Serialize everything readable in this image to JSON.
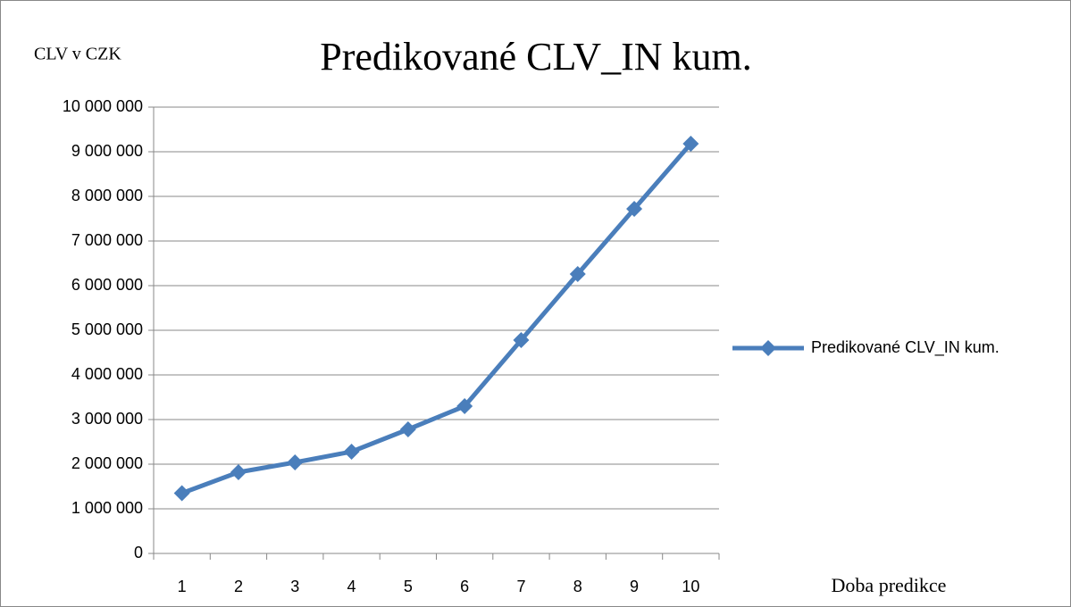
{
  "chart_data": {
    "type": "line",
    "title": "Predikované CLV_IN kum.",
    "y_label": "CLV v CZK",
    "x_label": "Doba predikce",
    "categories": [
      "1",
      "2",
      "3",
      "4",
      "5",
      "6",
      "7",
      "8",
      "9",
      "10"
    ],
    "series": [
      {
        "name": "Predikované CLV_IN kum.",
        "color": "#4a7ebb",
        "values": [
          1350000,
          1820000,
          2040000,
          2280000,
          2780000,
          3300000,
          4780000,
          6260000,
          7720000,
          9180000
        ]
      }
    ],
    "ylim": [
      0,
      10000000
    ],
    "yticks": [
      0,
      {
        "value": 1000000,
        "label": "1 000 000"
      },
      {
        "value": 2000000,
        "label": "2 000 000"
      },
      {
        "value": 3000000,
        "label": "3 000 000"
      },
      {
        "value": 4000000,
        "label": "4 000 000"
      },
      {
        "value": 5000000,
        "label": "5 000 000"
      },
      {
        "value": 6000000,
        "label": "6 000 000"
      },
      {
        "value": 7000000,
        "label": "7 000 000"
      },
      {
        "value": 8000000,
        "label": "8 000 000"
      },
      {
        "value": 9000000,
        "label": "9 000 000"
      },
      {
        "value": 10000000,
        "label": "10 000 000"
      }
    ],
    "grid": true,
    "legend": "right"
  }
}
